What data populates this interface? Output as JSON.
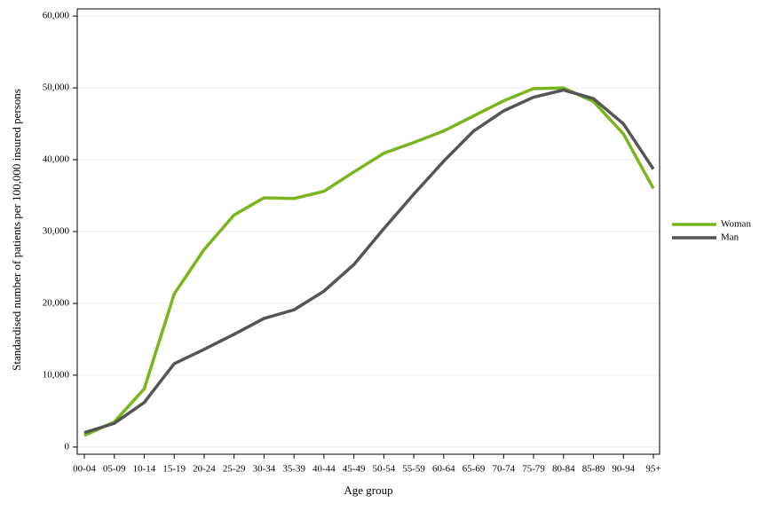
{
  "chart_data": {
    "type": "line",
    "x_label": "Age group",
    "y_label": "Standardised number of patients per 100,000 insured persons",
    "categories": [
      "00-04",
      "05-09",
      "10-14",
      "15-19",
      "20-24",
      "25-29",
      "30-34",
      "35-39",
      "40-44",
      "45-49",
      "50-54",
      "55-59",
      "60-64",
      "65-69",
      "70-74",
      "75-79",
      "80-84",
      "85-89",
      "90-94",
      "95+"
    ],
    "series": [
      {
        "name": "Woman",
        "color": "#7ab51d",
        "values": [
          1600,
          3500,
          8100,
          21300,
          27500,
          32300,
          34700,
          34600,
          35600,
          38300,
          40900,
          42400,
          44000,
          46100,
          48200,
          49900,
          50000,
          48100,
          43600,
          36000
        ]
      },
      {
        "name": "Man",
        "color": "#555555",
        "values": [
          2000,
          3300,
          6200,
          11600,
          13600,
          15700,
          17900,
          19100,
          21700,
          25400,
          30400,
          35200,
          39800,
          44000,
          46800,
          48700,
          49700,
          48500,
          45000,
          38700
        ]
      }
    ],
    "ylim": [
      -1000,
      61000
    ],
    "yticks": [
      0,
      {
        "value": 10000,
        "label": "10,000"
      },
      {
        "value": 20000,
        "label": "20,000"
      },
      {
        "value": 30000,
        "label": "30,000"
      },
      {
        "value": 40000,
        "label": "40,000"
      },
      {
        "value": 50000,
        "label": "50,000"
      },
      {
        "value": 60000,
        "label": "60,000"
      }
    ],
    "grid": true,
    "legend": "right"
  }
}
